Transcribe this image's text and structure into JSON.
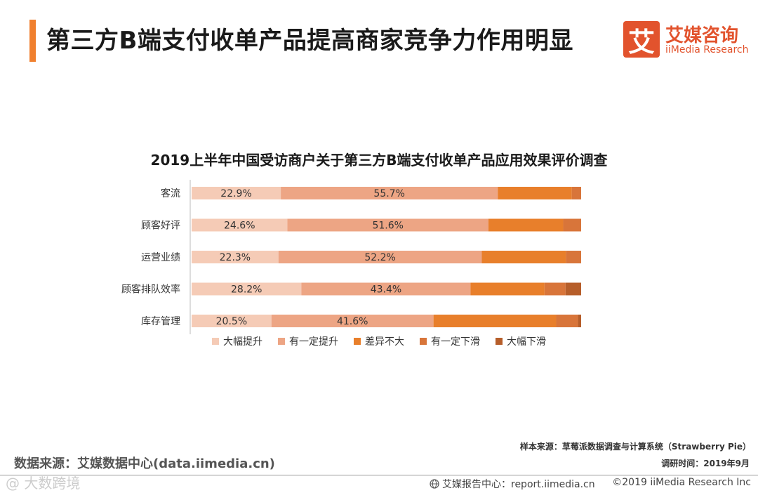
{
  "header": {
    "title": "第三方B端支付收单产品提高商家竞争力作用明显",
    "logo_mark": "艾",
    "logo_cn": "艾媒咨询",
    "logo_en": "iiMedia Research"
  },
  "chart_data": {
    "type": "bar",
    "orientation": "horizontal-stacked-100",
    "title": "2019上半年中国受访商户关于第三方B端支付收单产品应用效果评价调查",
    "categories": [
      "客流",
      "顾客好评",
      "运营业绩",
      "顾客排队效率",
      "库存管理"
    ],
    "series": [
      {
        "name": "大幅提升",
        "color": "#f5cbb6",
        "values": [
          22.9,
          24.6,
          22.3,
          28.2,
          20.5
        ],
        "show_labels": true
      },
      {
        "name": "有一定提升",
        "color": "#eda584",
        "values": [
          55.7,
          51.6,
          52.2,
          43.4,
          41.6
        ],
        "show_labels": true
      },
      {
        "name": "差异不大",
        "color": "#e87f2b",
        "values": [
          19.0,
          19.2,
          21.6,
          19.0,
          31.5
        ],
        "show_labels": false
      },
      {
        "name": "有一定下滑",
        "color": "#d8753a",
        "values": [
          2.4,
          4.6,
          3.9,
          5.4,
          5.6
        ],
        "show_labels": false
      },
      {
        "name": "大幅下滑",
        "color": "#b65e2a",
        "values": [
          0.0,
          0.0,
          0.0,
          4.0,
          0.8
        ],
        "show_labels": false
      }
    ],
    "value_format": "{v}%",
    "xlim": [
      0,
      100
    ],
    "legend_position": "bottom",
    "grid": false
  },
  "footer": {
    "sample_source": "样本来源：草莓派数据调查与计算系统（Strawberry Pie）",
    "survey_time": "调研时间：2019年9月",
    "data_source": "数据来源：艾媒数据中心(data.iimedia.cn)",
    "report_center": "艾媒报告中心：report.iimedia.cn",
    "copyright": "©2019  iiMedia Research  Inc",
    "watermark": "@ 大数跨境"
  }
}
